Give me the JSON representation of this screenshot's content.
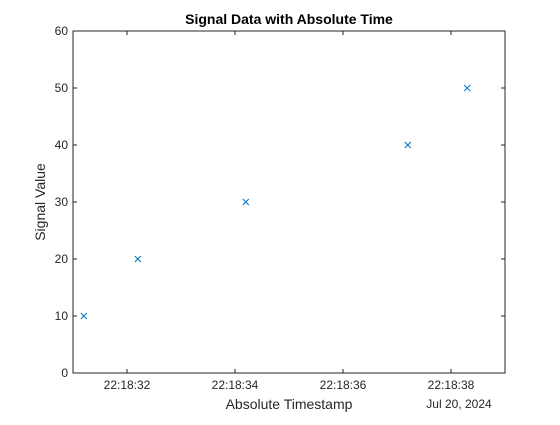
{
  "chart_data": {
    "type": "scatter",
    "title": "Signal Data with Absolute Time",
    "xlabel": "Absolute Timestamp",
    "ylabel": "Signal Value",
    "x_date_label": "Jul 20, 2024",
    "x_ticks": [
      "22:18:32",
      "22:18:34",
      "22:18:36",
      "22:18:38"
    ],
    "xlim": [
      "22:18:31",
      "22:18:39"
    ],
    "ylim": [
      0,
      60
    ],
    "y_ticks": [
      0,
      10,
      20,
      30,
      40,
      50,
      60
    ],
    "series": [
      {
        "marker": "x",
        "color": "#0072BD",
        "x": [
          "22:18:31.2",
          "22:18:32.2",
          "22:18:34.2",
          "22:18:37.2",
          "22:18:38.3"
        ],
        "y": [
          10,
          20,
          30,
          40,
          50
        ]
      }
    ],
    "grid": false,
    "box": true
  }
}
